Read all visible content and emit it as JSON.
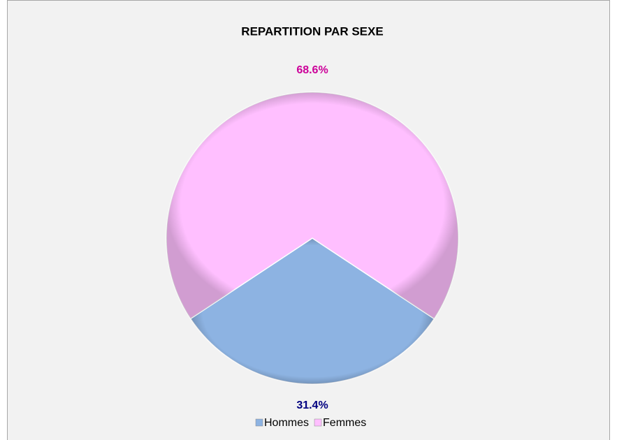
{
  "chart_data": {
    "type": "pie",
    "title": "REPARTITION PAR SEXE",
    "categories": [
      "Hommes",
      "Femmes"
    ],
    "values": [
      31.4,
      68.6
    ],
    "value_labels": [
      "31.4%",
      "68.6%"
    ],
    "colors": [
      "#8db3e2",
      "#ffbfff"
    ],
    "label_colors": [
      "#000080",
      "#cc0099"
    ],
    "legend": "bottom"
  }
}
